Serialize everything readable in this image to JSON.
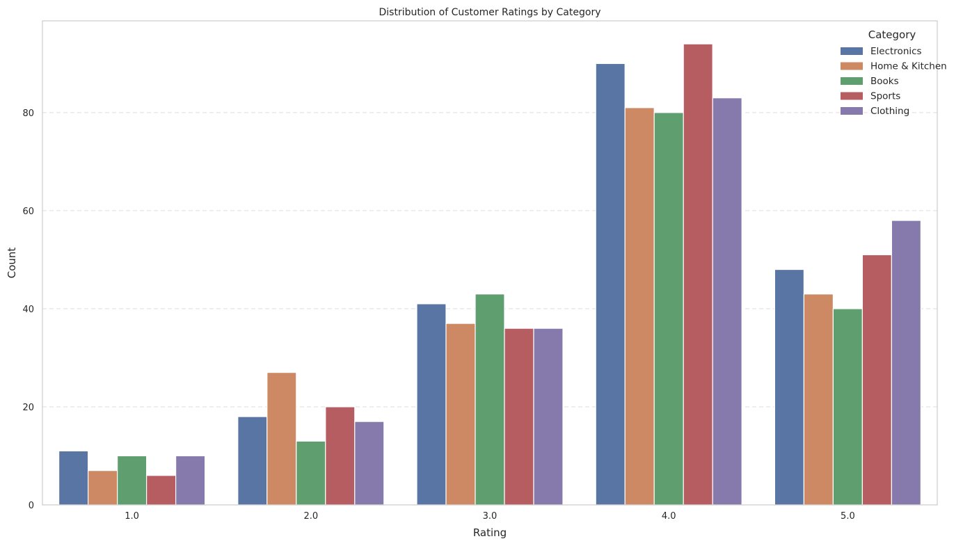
{
  "chart_data": {
    "type": "bar",
    "title": "Distribution of Customer Ratings by Category",
    "xlabel": "Rating",
    "ylabel": "Count",
    "categories": [
      "1.0",
      "2.0",
      "3.0",
      "4.0",
      "5.0"
    ],
    "ylim": [
      0,
      98.7
    ],
    "yticks": [
      0,
      20,
      40,
      60,
      80
    ],
    "grid": "y-dashed",
    "legend": {
      "title": "Category",
      "placement": "top-right"
    },
    "series": [
      {
        "name": "Electronics",
        "color": "#5975a4",
        "values": [
          11,
          18,
          41,
          90,
          48
        ]
      },
      {
        "name": "Home & Kitchen",
        "color": "#cc8963",
        "values": [
          7,
          27,
          37,
          81,
          43
        ]
      },
      {
        "name": "Books",
        "color": "#5f9e6e",
        "values": [
          10,
          13,
          43,
          80,
          40
        ]
      },
      {
        "name": "Sports",
        "color": "#b55d60",
        "values": [
          6,
          20,
          36,
          94,
          51
        ]
      },
      {
        "name": "Clothing",
        "color": "#857aab",
        "values": [
          10,
          17,
          36,
          83,
          58
        ]
      }
    ]
  }
}
